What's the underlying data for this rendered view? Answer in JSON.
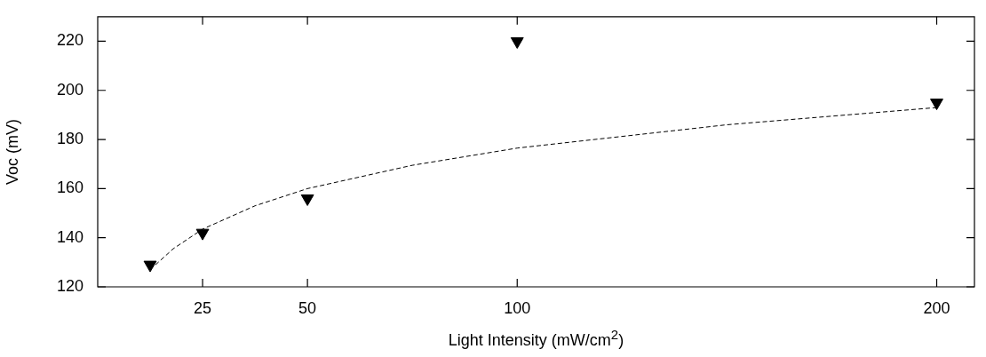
{
  "chart_data": {
    "type": "scatter",
    "xlabel": "Light Intensity (mW/cm$^{2}$)",
    "ylabel": "Voc (mV)",
    "xlim": [
      0,
      209
    ],
    "xticks": [
      25,
      50,
      100,
      200
    ],
    "ylim": [
      120,
      230
    ],
    "yticks": [
      120,
      140,
      160,
      180,
      200,
      220
    ],
    "grid": false,
    "legend": false,
    "marker": "triangle",
    "series": [
      {
        "color": "#000000",
        "x": [
          12.5,
          25,
          50,
          100,
          200
        ],
        "values": [
          129,
          142,
          156,
          220,
          195
        ]
      },
      {
        "type": "line",
        "color": "#000000",
        "marker": "none",
        "line_style": "dashed",
        "x": [
          12.5,
          18,
          25,
          37.5,
          50,
          75,
          100,
          150,
          200
        ],
        "values": [
          127,
          135.5,
          143.5,
          153,
          160,
          169.5,
          176.5,
          186,
          193
        ]
      }
    ]
  }
}
